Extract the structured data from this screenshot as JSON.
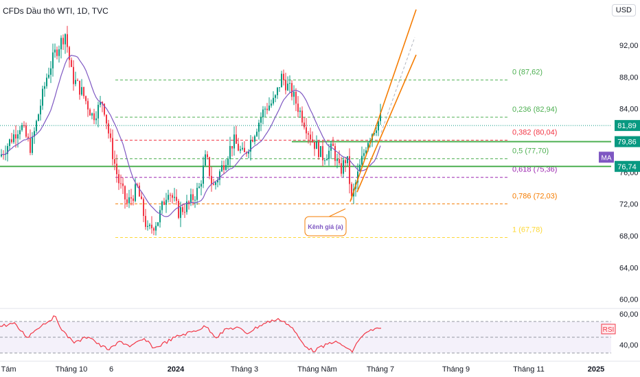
{
  "header": {
    "title": "CFDs Dầu thô WTI, 1D, TVC",
    "currency": "USD"
  },
  "colors": {
    "up": "#089981",
    "down": "#f23645",
    "ma": "#7e57c2",
    "rsi": "#f23645",
    "channel": "#f57c00",
    "support": "#4caf50",
    "last": "#089981"
  },
  "chart_data": {
    "type": "candlestick",
    "y_ticks": [
      "92,00",
      "88,00",
      "84,00",
      "76,00",
      "72,00",
      "68,00",
      "64,00",
      "60,00"
    ],
    "rsi_ticks": [
      "40,00"
    ],
    "x_ticks": [
      "g Tám",
      "Tháng 10",
      "6",
      "2024",
      "Tháng 3",
      "Tháng Năm",
      "Tháng 7",
      "Tháng 9",
      "Tháng 11",
      "2025"
    ],
    "fib_levels": [
      {
        "label": "0 (87,62)",
        "value": 87.62,
        "color": "#4caf50"
      },
      {
        "label": "0,236 (82,94)",
        "value": 82.94,
        "color": "#4caf50"
      },
      {
        "label": "0,382 (80,04)",
        "value": 80.04,
        "color": "#f23645"
      },
      {
        "label": "0,5 (77,70)",
        "value": 77.7,
        "color": "#4caf50"
      },
      {
        "label": "0,618 (75,36)",
        "value": 75.36,
        "color": "#9c27b0"
      },
      {
        "label": "0,786 (72,03)",
        "value": 72.03,
        "color": "#f57c00"
      },
      {
        "label": "1 (67,78)",
        "value": 67.78,
        "color": "#fdd835"
      }
    ],
    "price_badges": [
      {
        "label": "81,89",
        "value": 81.89,
        "color": "#089981"
      },
      {
        "label": "79,86",
        "value": 79.86,
        "color": "#089981"
      },
      {
        "label": "MA",
        "value": 77.9,
        "color": "#7e57c2"
      },
      {
        "label": "76,74",
        "value": 76.74,
        "color": "#089981"
      }
    ],
    "support_lines": [
      79.86,
      76.74
    ],
    "annotation": "Kênh giá (a)",
    "indicator_labels": [
      "RSI"
    ]
  }
}
